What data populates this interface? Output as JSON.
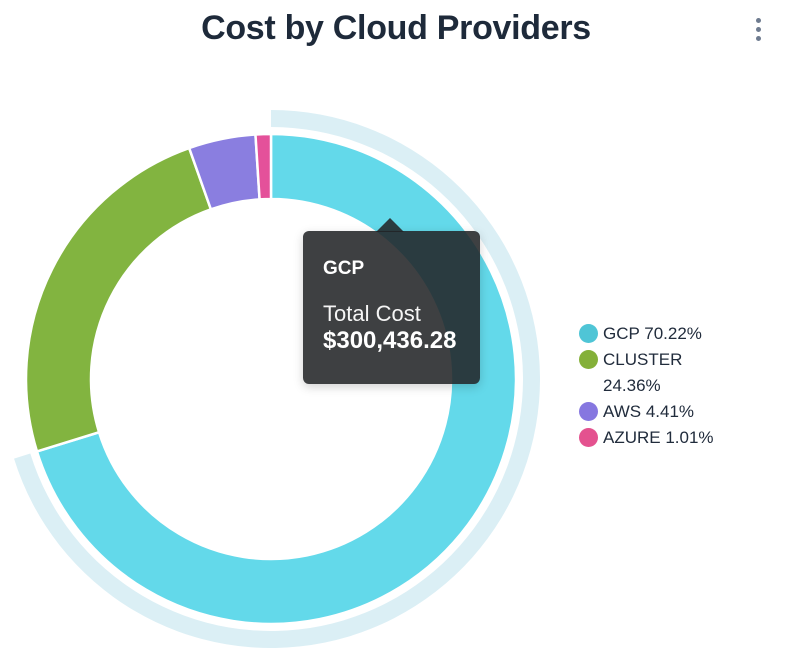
{
  "header": {
    "title": "Cost by Cloud Providers"
  },
  "chart_data": {
    "type": "pie",
    "subtype": "donut",
    "title": "Cost by Cloud Providers",
    "legend_position": "right",
    "direction": "clockwise",
    "start_angle_deg": 0,
    "series": [
      {
        "name": "GCP",
        "percent": 70.22,
        "legend_label": "GCP 70.22%",
        "color": "#4FC5D6",
        "slice_color": "#63D9EA",
        "highlighted": true
      },
      {
        "name": "CLUSTER",
        "percent": 24.36,
        "legend_label": "CLUSTER 24.36%",
        "color": "#84B039",
        "slice_color": "#82B440",
        "highlighted": false
      },
      {
        "name": "AWS",
        "percent": 4.41,
        "legend_label": "AWS 4.41%",
        "color": "#8677E0",
        "slice_color": "#8A7EE0",
        "highlighted": false
      },
      {
        "name": "AZURE",
        "percent": 1.01,
        "legend_label": "AZURE 1.01%",
        "color": "#E4528F",
        "slice_color": "#E4519A",
        "highlighted": false
      }
    ],
    "highlight_ring_color": "#DBEFF5"
  },
  "tooltip": {
    "series_name": "GCP",
    "metric_label": "Total Cost",
    "value": "$300,436.28"
  }
}
